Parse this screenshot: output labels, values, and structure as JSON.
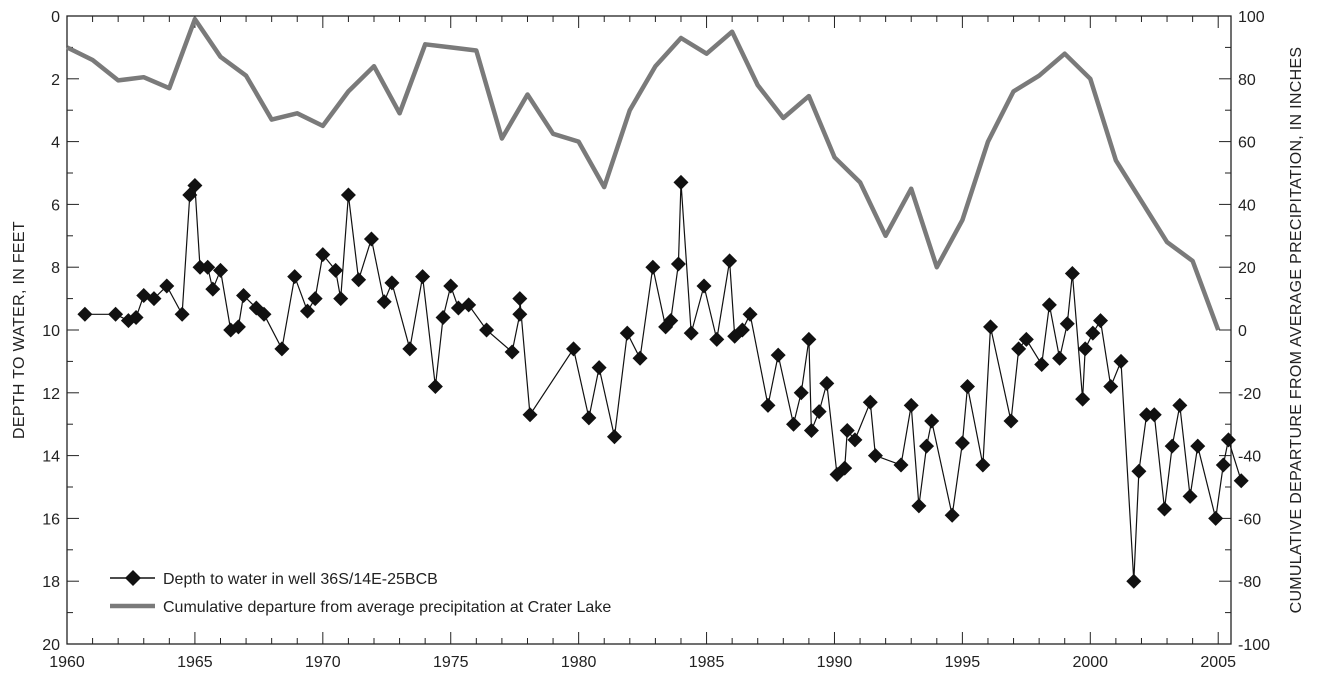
{
  "chart_data": {
    "type": "line",
    "xlabel": "",
    "ylabel": "DEPTH TO WATER, IN FEET",
    "y2label": "CUMULATIVE DEPARTURE FROM AVERAGE PRECIPITATION, IN INCHES",
    "xlim": [
      1960,
      2005.5
    ],
    "ylim": [
      20,
      0
    ],
    "y2lim": [
      -100,
      100
    ],
    "xticks": [
      1960,
      1965,
      1970,
      1975,
      1980,
      1985,
      1990,
      1995,
      2000,
      2005
    ],
    "yticks": [
      0,
      2,
      4,
      6,
      8,
      10,
      12,
      14,
      16,
      18,
      20
    ],
    "y2ticks": [
      100,
      80,
      60,
      40,
      20,
      0,
      -20,
      -40,
      -60,
      -80,
      -100
    ],
    "legend_position": "bottom-left",
    "grid": false,
    "series": [
      {
        "name": "Depth to water in well 36S/14E-25BCB",
        "axis": "left",
        "marker": "diamond",
        "color": "#111111",
        "points": [
          [
            1960.7,
            9.5
          ],
          [
            1961.9,
            9.5
          ],
          [
            1962.4,
            9.7
          ],
          [
            1962.7,
            9.6
          ],
          [
            1963.0,
            8.9
          ],
          [
            1963.4,
            9.0
          ],
          [
            1963.9,
            8.6
          ],
          [
            1964.5,
            9.5
          ],
          [
            1964.8,
            5.7
          ],
          [
            1965.0,
            5.4
          ],
          [
            1965.2,
            8.0
          ],
          [
            1965.5,
            8.0
          ],
          [
            1965.7,
            8.7
          ],
          [
            1966.0,
            8.1
          ],
          [
            1966.4,
            10.0
          ],
          [
            1966.7,
            9.9
          ],
          [
            1966.9,
            8.9
          ],
          [
            1967.4,
            9.3
          ],
          [
            1967.7,
            9.5
          ],
          [
            1968.4,
            10.6
          ],
          [
            1968.9,
            8.3
          ],
          [
            1969.4,
            9.4
          ],
          [
            1969.7,
            9.0
          ],
          [
            1970.0,
            7.6
          ],
          [
            1970.5,
            8.1
          ],
          [
            1970.7,
            9.0
          ],
          [
            1971.0,
            5.7
          ],
          [
            1971.4,
            8.4
          ],
          [
            1971.9,
            7.1
          ],
          [
            1972.4,
            9.1
          ],
          [
            1972.7,
            8.5
          ],
          [
            1973.4,
            10.6
          ],
          [
            1973.9,
            8.3
          ],
          [
            1974.4,
            11.8
          ],
          [
            1974.7,
            9.6
          ],
          [
            1975.0,
            8.6
          ],
          [
            1975.3,
            9.3
          ],
          [
            1975.7,
            9.2
          ],
          [
            1976.4,
            10.0
          ],
          [
            1977.4,
            10.7
          ],
          [
            1977.7,
            9.5
          ],
          [
            1977.7,
            9.0
          ],
          [
            1978.1,
            12.7
          ],
          [
            1979.8,
            10.6
          ],
          [
            1980.4,
            12.8
          ],
          [
            1980.8,
            11.2
          ],
          [
            1981.4,
            13.4
          ],
          [
            1981.9,
            10.1
          ],
          [
            1982.4,
            10.9
          ],
          [
            1982.9,
            8.0
          ],
          [
            1983.4,
            9.9
          ],
          [
            1983.6,
            9.7
          ],
          [
            1983.9,
            7.9
          ],
          [
            1984.0,
            5.3
          ],
          [
            1984.4,
            10.1
          ],
          [
            1984.9,
            8.6
          ],
          [
            1985.4,
            10.3
          ],
          [
            1985.9,
            7.8
          ],
          [
            1986.1,
            10.2
          ],
          [
            1986.4,
            10.0
          ],
          [
            1986.7,
            9.5
          ],
          [
            1987.4,
            12.4
          ],
          [
            1987.8,
            10.8
          ],
          [
            1988.4,
            13.0
          ],
          [
            1988.7,
            12.0
          ],
          [
            1989.0,
            10.3
          ],
          [
            1989.1,
            13.2
          ],
          [
            1989.4,
            12.6
          ],
          [
            1989.7,
            11.7
          ],
          [
            1990.1,
            14.6
          ],
          [
            1990.4,
            14.4
          ],
          [
            1990.5,
            13.2
          ],
          [
            1990.8,
            13.5
          ],
          [
            1991.4,
            12.3
          ],
          [
            1991.6,
            14.0
          ],
          [
            1992.6,
            14.3
          ],
          [
            1993.0,
            12.4
          ],
          [
            1993.3,
            15.6
          ],
          [
            1993.6,
            13.7
          ],
          [
            1993.8,
            12.9
          ],
          [
            1994.6,
            15.9
          ],
          [
            1995.0,
            13.6
          ],
          [
            1995.2,
            11.8
          ],
          [
            1995.8,
            14.3
          ],
          [
            1996.1,
            9.9
          ],
          [
            1996.9,
            12.9
          ],
          [
            1997.2,
            10.6
          ],
          [
            1997.5,
            10.3
          ],
          [
            1998.1,
            11.1
          ],
          [
            1998.4,
            9.2
          ],
          [
            1998.8,
            10.9
          ],
          [
            1999.1,
            9.8
          ],
          [
            1999.3,
            8.2
          ],
          [
            1999.7,
            12.2
          ],
          [
            1999.8,
            10.6
          ],
          [
            2000.1,
            10.1
          ],
          [
            2000.4,
            9.7
          ],
          [
            2000.8,
            11.8
          ],
          [
            2001.2,
            11.0
          ],
          [
            2001.7,
            18.0
          ],
          [
            2001.9,
            14.5
          ],
          [
            2002.2,
            12.7
          ],
          [
            2002.5,
            12.7
          ],
          [
            2002.9,
            15.7
          ],
          [
            2003.2,
            13.7
          ],
          [
            2003.5,
            12.4
          ],
          [
            2003.9,
            15.3
          ],
          [
            2004.2,
            13.7
          ],
          [
            2004.9,
            16.0
          ],
          [
            2005.2,
            14.3
          ],
          [
            2005.4,
            13.5
          ],
          [
            2005.9,
            14.8
          ]
        ]
      },
      {
        "name": "Cumulative departure from average precipitation at Crater Lake",
        "axis": "right",
        "marker": "none",
        "color": "#7a7a7a",
        "points": [
          [
            1960.0,
            90
          ],
          [
            1961.0,
            86
          ],
          [
            1962.0,
            79.5
          ],
          [
            1963.0,
            80.5
          ],
          [
            1964.0,
            77
          ],
          [
            1965.0,
            99
          ],
          [
            1966.0,
            87
          ],
          [
            1967.0,
            81
          ],
          [
            1968.0,
            67
          ],
          [
            1969.0,
            69
          ],
          [
            1970.0,
            65
          ],
          [
            1971.0,
            76
          ],
          [
            1972.0,
            84
          ],
          [
            1973.0,
            69
          ],
          [
            1974.0,
            91
          ],
          [
            1975.0,
            90
          ],
          [
            1976.0,
            89
          ],
          [
            1977.0,
            61
          ],
          [
            1978.0,
            75
          ],
          [
            1979.0,
            62.5
          ],
          [
            1980.0,
            60
          ],
          [
            1981.0,
            45.5
          ],
          [
            1982.0,
            70
          ],
          [
            1983.0,
            84
          ],
          [
            1984.0,
            93
          ],
          [
            1985.0,
            88
          ],
          [
            1986.0,
            95
          ],
          [
            1987.0,
            78
          ],
          [
            1988.0,
            67.5
          ],
          [
            1989.0,
            74.5
          ],
          [
            1990.0,
            55
          ],
          [
            1991.0,
            47
          ],
          [
            1992.0,
            30
          ],
          [
            1993.0,
            45
          ],
          [
            1994.0,
            20
          ],
          [
            1995.0,
            35
          ],
          [
            1996.0,
            60
          ],
          [
            1997.0,
            76
          ],
          [
            1998.0,
            81
          ],
          [
            1999.0,
            88
          ],
          [
            2000.0,
            80
          ],
          [
            2001.0,
            54
          ],
          [
            2002.0,
            41
          ],
          [
            2003.0,
            28
          ],
          [
            2004.0,
            22
          ],
          [
            2005.0,
            0
          ]
        ]
      }
    ]
  }
}
